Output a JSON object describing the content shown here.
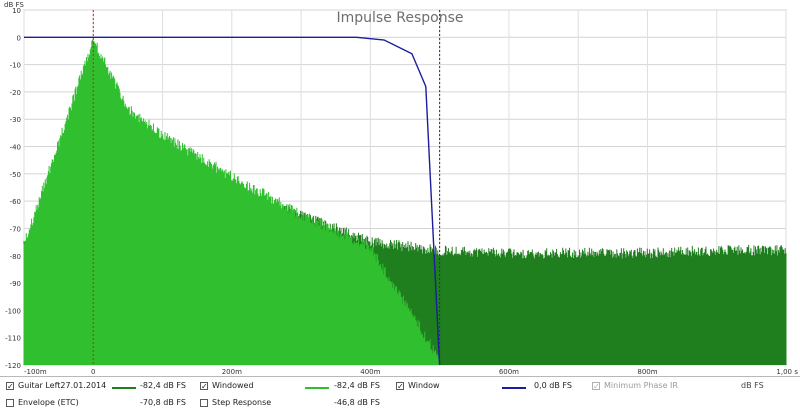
{
  "chart_data": {
    "type": "line",
    "title": "Impulse Response",
    "y_unit_label": "dB FS",
    "x_unit_label": "s",
    "xlim": [
      -0.1,
      1.0
    ],
    "ylim": [
      -120,
      10
    ],
    "x_ticks": [
      {
        "value": -0.1,
        "label": "-100m"
      },
      {
        "value": 0.0,
        "label": "0"
      },
      {
        "value": 0.2,
        "label": "200m"
      },
      {
        "value": 0.4,
        "label": "400m"
      },
      {
        "value": 0.6,
        "label": "600m"
      },
      {
        "value": 0.8,
        "label": "800m"
      },
      {
        "value": 1.0,
        "label": "1,00"
      }
    ],
    "y_ticks": [
      {
        "value": 10,
        "label": "10"
      },
      {
        "value": 0,
        "label": "0"
      },
      {
        "value": -10,
        "label": "-10"
      },
      {
        "value": -20,
        "label": "-20"
      },
      {
        "value": -30,
        "label": "-30"
      },
      {
        "value": -40,
        "label": "-40"
      },
      {
        "value": -50,
        "label": "-50"
      },
      {
        "value": -60,
        "label": "-60"
      },
      {
        "value": -70,
        "label": "-70"
      },
      {
        "value": -80,
        "label": "-80"
      },
      {
        "value": -90,
        "label": "-90"
      },
      {
        "value": -100,
        "label": "-100"
      },
      {
        "value": -110,
        "label": "-110"
      },
      {
        "value": -120,
        "label": "-120"
      }
    ],
    "grid": true,
    "markers": [
      {
        "x": 0.0,
        "color": "#cc2222",
        "style": "dashed"
      },
      {
        "x": 0.5,
        "color": "#333333",
        "style": "dashed"
      }
    ],
    "series": [
      {
        "name": "Guitar Left27.01.2014",
        "color": "#1f7f1f",
        "x": [
          -0.1,
          0.0,
          0.05,
          0.1,
          0.2,
          0.3,
          0.4,
          0.5,
          0.6,
          0.7,
          0.8,
          0.9,
          1.0
        ],
        "y": [
          -78,
          -77,
          -35,
          -45,
          -58,
          -67,
          -77,
          -80,
          -81,
          -81,
          -81,
          -80,
          -80
        ]
      },
      {
        "name": "Windowed",
        "color": "#2fbf2f",
        "x": [
          -0.1,
          0.0,
          0.05,
          0.1,
          0.2,
          0.3,
          0.4,
          0.5
        ],
        "y": [
          -78,
          -3,
          -28,
          -38,
          -53,
          -67,
          -79,
          -120
        ]
      },
      {
        "name": "Window",
        "color": "#1c1c9c",
        "x": [
          -0.1,
          0.0,
          0.2,
          0.38,
          0.42,
          0.46,
          0.48,
          0.5
        ],
        "y": [
          0,
          0,
          0,
          0,
          -1,
          -6,
          -18,
          -120
        ]
      }
    ]
  },
  "legend": {
    "row1": [
      {
        "label": "Guitar Left27.01.2014",
        "checked": true,
        "mark": "✓",
        "color": "#1f7f1f",
        "value": "-82,4 dB FS"
      },
      {
        "label": "Windowed",
        "checked": true,
        "mark": "✓",
        "color": "#2fbf2f",
        "value": "-82,4 dB FS"
      },
      {
        "label": "Window",
        "checked": true,
        "mark": "✓",
        "color": "#1c1c9c",
        "value": "0,0 dB FS"
      },
      {
        "label": "Minimum Phase IR",
        "checked": true,
        "mark": "✓",
        "disabled": true,
        "value": "dB FS"
      }
    ],
    "row2": [
      {
        "label": "Envelope (ETC)",
        "checked": false,
        "mark": "",
        "value": "-70,8 dB FS"
      },
      {
        "label": "Step Response",
        "checked": false,
        "mark": "",
        "value": "-46,8 dB FS"
      }
    ]
  }
}
